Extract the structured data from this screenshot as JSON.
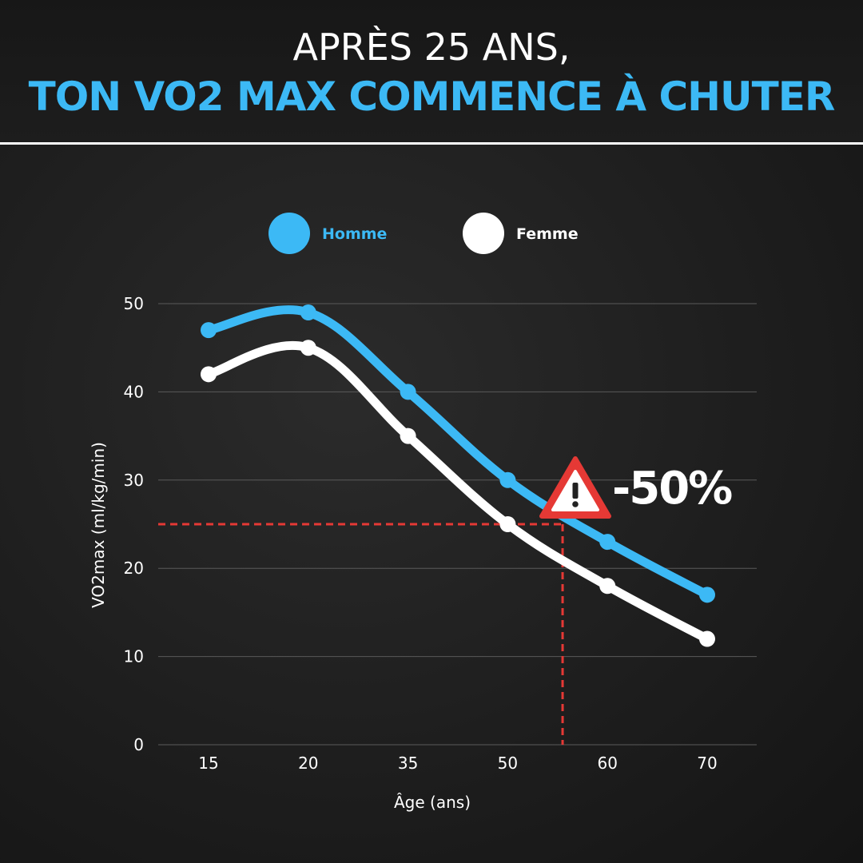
{
  "header": {
    "line1": "APRÈS 25 ANS,",
    "line2": "TON VO2 MAX COMMENCE À CHUTER"
  },
  "colors": {
    "homme": "#3cb9f5",
    "femme": "#ffffff",
    "reference": "#e53935",
    "warning": "#e53935"
  },
  "chart_data": {
    "type": "line",
    "categories": [
      "15",
      "20",
      "35",
      "50",
      "60",
      "70"
    ],
    "series": [
      {
        "name": "Homme",
        "values": [
          47,
          49,
          40,
          30,
          23,
          17
        ]
      },
      {
        "name": "Femme",
        "values": [
          42,
          45,
          35,
          25,
          18,
          12
        ]
      }
    ],
    "xlabel": "Âge (ans)",
    "ylabel": "VO2max (ml/kg/min)",
    "ylim": [
      0,
      50
    ],
    "yticks": [
      "0",
      "10",
      "20",
      "30",
      "40",
      "50"
    ],
    "grid": true,
    "legend": "top",
    "reference_lines": {
      "y": 25,
      "x_between": [
        "50",
        "60"
      ],
      "x_fraction": 0.55
    },
    "annotation": {
      "text": "-50%",
      "icon": "warning-icon"
    }
  }
}
